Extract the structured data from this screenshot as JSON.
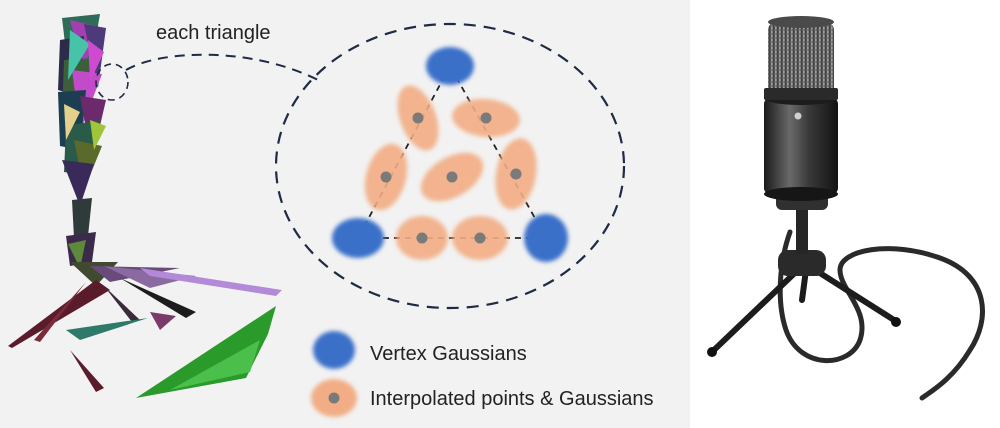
{
  "callout": {
    "label": "each triangle"
  },
  "legend": {
    "items": [
      {
        "label": "Vertex Gaussians",
        "color": "#3b6fc9"
      },
      {
        "label": "Interpolated points & Gaussians",
        "color": "#f2ad84",
        "point_color": "#7a7a7a"
      }
    ]
  },
  "colors": {
    "panel_background": "#f2f2f2",
    "vertex_gaussian": "#3b6fc9",
    "interpolated_gaussian": "#f2ad84",
    "interpolated_point": "#7a7a7a",
    "dashed_outline": "#1f2a44"
  }
}
